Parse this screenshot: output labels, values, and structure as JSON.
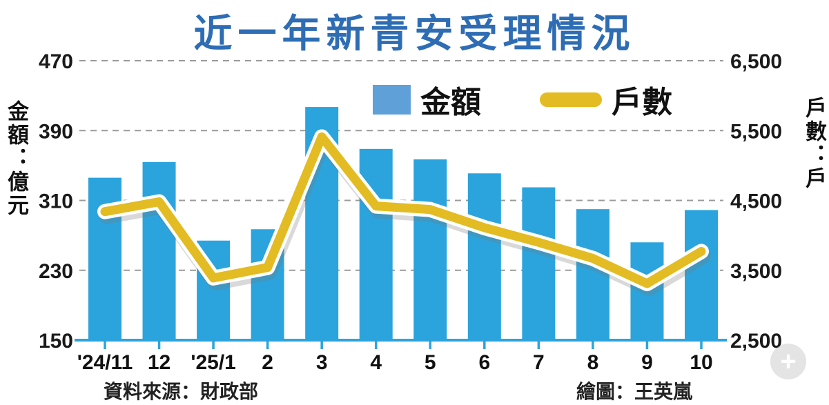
{
  "title": "近一年新青安受理情況",
  "left_axis": {
    "unit_label": "金額：億元",
    "ticks": [
      "470",
      "390",
      "310",
      "230",
      "150"
    ]
  },
  "right_axis": {
    "unit_label": "戶數：戶",
    "ticks": [
      "6,500",
      "5,500",
      "4,500",
      "3,500",
      "2,500"
    ]
  },
  "legend": [
    {
      "label": "金額",
      "type": "bar",
      "swatch_color": "#5fa0d9"
    },
    {
      "label": "戶數",
      "type": "line",
      "swatch_color": "#e3bc23"
    }
  ],
  "footer": {
    "source": "資料來源：財政部",
    "credit": "繪圖：王英嵐"
  },
  "icons": {
    "zoom_in_glyph": "+",
    "zoom_in_name": "zoom-in-icon"
  },
  "colors": {
    "bar": "#2ba4dd",
    "line": "#e3bc23",
    "line_casing": "#ffffff",
    "title": "#2e6db4",
    "grid": "#9a9a9a",
    "axis_line": "#2ba4dd",
    "tick_text": "#1a1a1a"
  },
  "chart_data": {
    "type": "bar",
    "subtype": "bar+line combo",
    "title": "近一年新青安受理情況",
    "categories": [
      "'24/11",
      "12",
      "'25/1",
      "2",
      "3",
      "4",
      "5",
      "6",
      "7",
      "8",
      "9",
      "10"
    ],
    "series": [
      {
        "name": "金額",
        "type": "bar",
        "axis": "left",
        "color": "#2ba4dd",
        "values": [
          336,
          354,
          264,
          277,
          417,
          369,
          357,
          341,
          325,
          300,
          262,
          299
        ]
      },
      {
        "name": "戶數",
        "type": "line",
        "axis": "right",
        "color": "#e3bc23",
        "values": [
          4340,
          4480,
          3390,
          3540,
          5410,
          4420,
          4370,
          4110,
          3900,
          3670,
          3310,
          3770
        ]
      }
    ],
    "left_ylabel": "金額：億元",
    "right_ylabel": "戶數：戶",
    "left_ylim": [
      150,
      470
    ],
    "right_ylim": [
      2500,
      6500
    ],
    "grid": true,
    "legend_position": "top"
  }
}
